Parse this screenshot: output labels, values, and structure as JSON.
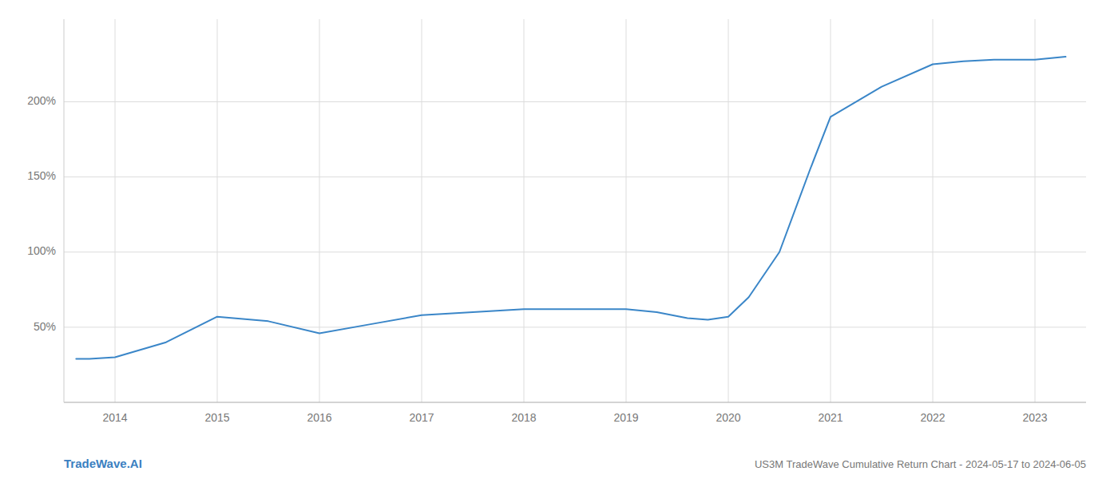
{
  "chart_data": {
    "type": "line",
    "title": "US3M TradeWave Cumulative Return Chart - 2024-05-17 to 2024-06-05",
    "watermark": "TradeWave.AI",
    "x": [
      2013.62,
      2013.75,
      2014.0,
      2014.5,
      2015.0,
      2015.5,
      2016.0,
      2016.5,
      2017.0,
      2017.5,
      2018.0,
      2018.5,
      2019.0,
      2019.3,
      2019.6,
      2019.8,
      2020.0,
      2020.2,
      2020.5,
      2020.8,
      2021.0,
      2021.5,
      2022.0,
      2022.3,
      2022.6,
      2023.0,
      2023.3
    ],
    "values": [
      29,
      29,
      30,
      40,
      57,
      54,
      46,
      52,
      58,
      60,
      62,
      62,
      62,
      60,
      56,
      55,
      57,
      70,
      100,
      155,
      190,
      210,
      225,
      227,
      228,
      228,
      230
    ],
    "color": "#3a86c8",
    "xlim": [
      2013.5,
      2023.5
    ],
    "ylim": [
      0,
      255
    ],
    "xticks": [
      2014,
      2015,
      2016,
      2017,
      2018,
      2019,
      2020,
      2021,
      2022,
      2023
    ],
    "yticks": [
      {
        "value": 50,
        "label": "50%"
      },
      {
        "value": 100,
        "label": "100%"
      },
      {
        "value": 150,
        "label": "150%"
      },
      {
        "value": 200,
        "label": "200%"
      }
    ],
    "grid": true
  }
}
